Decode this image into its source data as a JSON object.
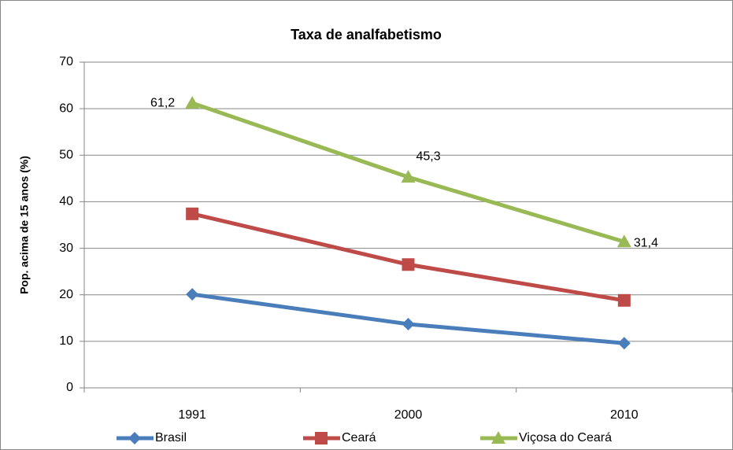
{
  "chart_data": {
    "type": "line",
    "title": "Taxa de analfabetismo",
    "y_label": "Pop. acima de 15 anos (%)",
    "categories": [
      "1991",
      "2000",
      "2010"
    ],
    "series": [
      {
        "name": "Brasil",
        "color": "#4a7ebb",
        "marker": "diamond",
        "values": [
          20.1,
          13.7,
          9.6
        ]
      },
      {
        "name": "Ceará",
        "color": "#be4b48",
        "marker": "square",
        "values": [
          37.4,
          26.5,
          18.8
        ]
      },
      {
        "name": "Viçosa do Ceará",
        "color": "#98b954",
        "marker": "triangle",
        "values": [
          61.2,
          45.3,
          31.4
        ],
        "value_labels": [
          "61,2",
          "45,3",
          "31,4"
        ]
      }
    ],
    "ylim": [
      0,
      70
    ],
    "yticks": [
      0,
      10,
      20,
      30,
      40,
      50,
      60,
      70
    ],
    "grid": true,
    "legend": "bottom"
  }
}
